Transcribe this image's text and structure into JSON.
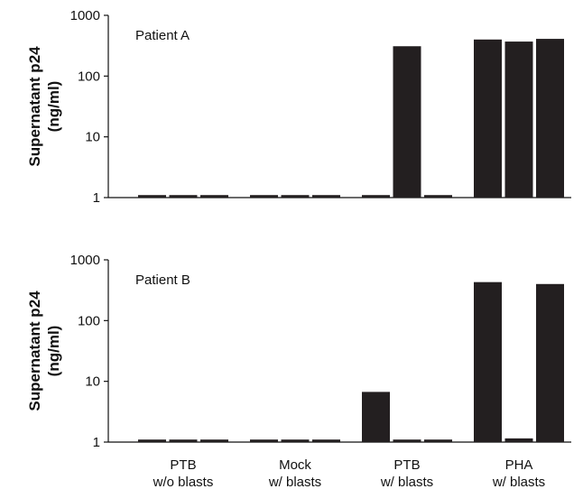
{
  "chart_data": [
    {
      "type": "bar",
      "panel_label": "Patient A",
      "ylabel": "Supernatant p24\n(ng/ml)",
      "yscale": "log",
      "ylim": [
        1,
        1000
      ],
      "yticks": [
        1,
        10,
        100,
        1000
      ],
      "ytick_labels": [
        "1",
        "10",
        "100",
        "1000"
      ],
      "categories": [
        "PTB\nw/o blasts",
        "Mock\nw/ blasts",
        "PTB\nw/ blasts",
        "PHA\nw/ blasts"
      ],
      "groups": [
        {
          "category": "PTB\nw/o blasts",
          "values": [
            1.1,
            1.1,
            1.1
          ]
        },
        {
          "category": "Mock\nw/ blasts",
          "values": [
            1.1,
            1.1,
            1.1
          ]
        },
        {
          "category": "PTB\nw/ blasts",
          "values": [
            1.1,
            310,
            1.1
          ]
        },
        {
          "category": "PHA\nw/ blasts",
          "values": [
            400,
            370,
            410
          ]
        }
      ],
      "bar_color": "#231f20"
    },
    {
      "type": "bar",
      "panel_label": "Patient B",
      "ylabel": "Supernatant p24\n(ng/ml)",
      "yscale": "log",
      "ylim": [
        1,
        1000
      ],
      "yticks": [
        1,
        10,
        100,
        1000
      ],
      "ytick_labels": [
        "1",
        "10",
        "100",
        "1000"
      ],
      "categories": [
        "PTB\nw/o blasts",
        "Mock\nw/ blasts",
        "PTB\nw/ blasts",
        "PHA\nw/ blasts"
      ],
      "groups": [
        {
          "category": "PTB\nw/o blasts",
          "values": [
            1.1,
            1.1,
            1.1
          ]
        },
        {
          "category": "Mock\nw/ blasts",
          "values": [
            1.1,
            1.1,
            1.1
          ]
        },
        {
          "category": "PTB\nw/ blasts",
          "values": [
            6.7,
            1.1,
            1.1
          ]
        },
        {
          "category": "PHA\nw/ blasts",
          "values": [
            430,
            1.15,
            400
          ]
        }
      ],
      "bar_color": "#231f20"
    }
  ]
}
